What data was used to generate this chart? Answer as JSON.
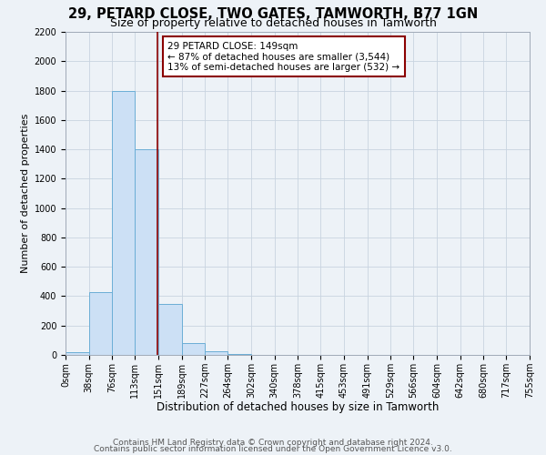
{
  "title1": "29, PETARD CLOSE, TWO GATES, TAMWORTH, B77 1GN",
  "title2": "Size of property relative to detached houses in Tamworth",
  "xlabel": "Distribution of detached houses by size in Tamworth",
  "ylabel": "Number of detached properties",
  "bin_edges": [
    0,
    38,
    76,
    113,
    151,
    189,
    227,
    264,
    302,
    340,
    378,
    415,
    453,
    491,
    529,
    566,
    604,
    642,
    680,
    717,
    755
  ],
  "bin_counts": [
    20,
    430,
    1800,
    1400,
    350,
    80,
    25,
    5,
    0,
    0,
    0,
    0,
    0,
    0,
    0,
    0,
    0,
    0,
    0,
    0
  ],
  "bar_color": "#cce0f5",
  "bar_edge_color": "#6baed6",
  "vline_x": 149,
  "vline_color": "#8b0000",
  "annotation_line1": "29 PETARD CLOSE: 149sqm",
  "annotation_line2": "← 87% of detached houses are smaller (3,544)",
  "annotation_line3": "13% of semi-detached houses are larger (532) →",
  "annotation_box_color": "white",
  "annotation_box_edge": "#8b0000",
  "ylim": [
    0,
    2200
  ],
  "yticks": [
    0,
    200,
    400,
    600,
    800,
    1000,
    1200,
    1400,
    1600,
    1800,
    2000,
    2200
  ],
  "tick_labels": [
    "0sqm",
    "38sqm",
    "76sqm",
    "113sqm",
    "151sqm",
    "189sqm",
    "227sqm",
    "264sqm",
    "302sqm",
    "340sqm",
    "378sqm",
    "415sqm",
    "453sqm",
    "491sqm",
    "529sqm",
    "566sqm",
    "604sqm",
    "642sqm",
    "680sqm",
    "717sqm",
    "755sqm"
  ],
  "footer1": "Contains HM Land Registry data © Crown copyright and database right 2024.",
  "footer2": "Contains public sector information licensed under the Open Government Licence v3.0.",
  "bg_color": "#edf2f7",
  "plot_bg_color": "#edf2f7",
  "grid_color": "#c8d4e0",
  "title1_fontsize": 10.5,
  "title2_fontsize": 9,
  "xlabel_fontsize": 8.5,
  "ylabel_fontsize": 8,
  "tick_fontsize": 7,
  "footer_fontsize": 6.5
}
